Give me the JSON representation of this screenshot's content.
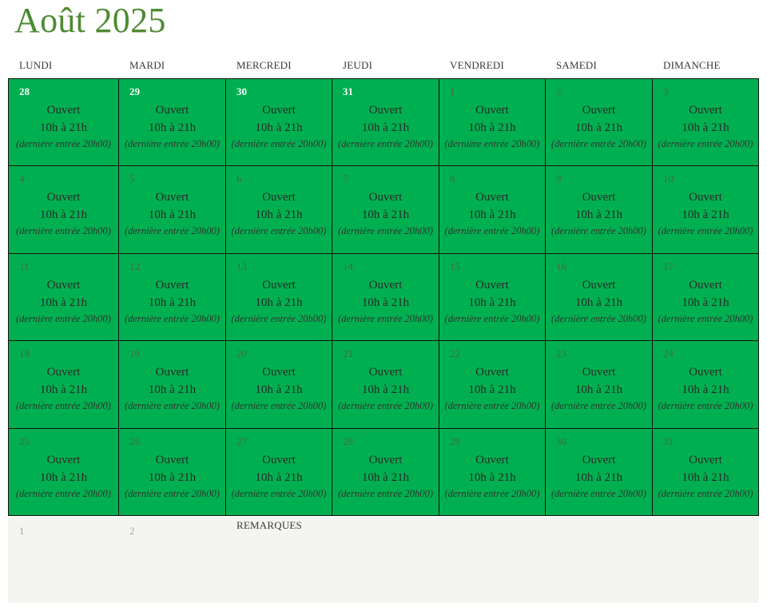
{
  "title": "Août 2025",
  "weekdays": [
    "LUNDI",
    "MARDI",
    "MERCREDI",
    "JEUDI",
    "VENDREDI",
    "SAMEDI",
    "DIMANCHE"
  ],
  "day_info": {
    "status": "Ouvert",
    "hours": "10h à 21h",
    "note": "(dernière entrée 20h00)"
  },
  "weeks": [
    [
      "28",
      "29",
      "30",
      "31",
      "1",
      "2",
      "3"
    ],
    [
      "4",
      "5",
      "6",
      "7",
      "8",
      "9",
      "10"
    ],
    [
      "11",
      "12",
      "13",
      "14",
      "15",
      "16",
      "17"
    ],
    [
      "18",
      "19",
      "20",
      "21",
      "22",
      "23",
      "24"
    ],
    [
      "25",
      "26",
      "27",
      "28",
      "29",
      "30",
      "31"
    ]
  ],
  "footer": {
    "numbers": [
      "1",
      "2"
    ],
    "remarks_label": "REMARQUES"
  },
  "colors": {
    "cell_green": "#00b050",
    "title_green": "#4e8a33",
    "footer_bg": "#f4f4f0"
  }
}
